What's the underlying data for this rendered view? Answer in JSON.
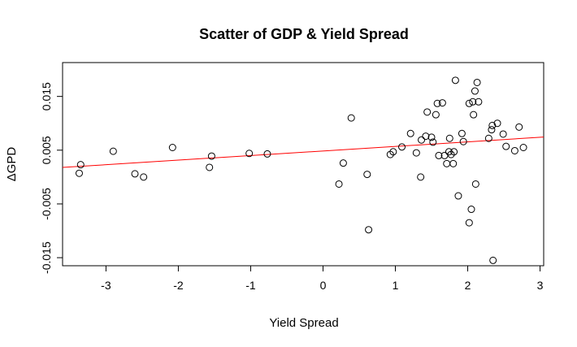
{
  "chart_data": {
    "type": "scatter",
    "title": "Scatter of GDP & Yield Spread",
    "xlabel": "Yield Spread",
    "ylabel": "ΔGPD",
    "xlim": [
      -3.6,
      3.05
    ],
    "ylim": [
      -0.0165,
      0.0213
    ],
    "xticks": [
      -3,
      -2,
      -1,
      0,
      1,
      2,
      3
    ],
    "yticks": [
      -0.015,
      -0.005,
      0.005,
      0.015
    ],
    "xtick_labels": [
      "-3",
      "-2",
      "-1",
      "0",
      "1",
      "2",
      "3"
    ],
    "ytick_labels": [
      "-0.015",
      "-0.005",
      "0.005",
      "0.015"
    ],
    "colors": {
      "points": "#000000",
      "regression": "#ff0000",
      "frame": "#000000"
    },
    "regression_line": {
      "intercept": 0.00485,
      "slope": 0.00085
    },
    "points": [
      {
        "x": -3.35,
        "y": 0.0023
      },
      {
        "x": -3.37,
        "y": 0.0007
      },
      {
        "x": -2.9,
        "y": 0.0048
      },
      {
        "x": -2.6,
        "y": 0.0006
      },
      {
        "x": -2.48,
        "y": 0.0
      },
      {
        "x": -2.08,
        "y": 0.0055
      },
      {
        "x": -1.57,
        "y": 0.0018
      },
      {
        "x": -1.54,
        "y": 0.0039
      },
      {
        "x": -1.02,
        "y": 0.0044
      },
      {
        "x": -0.77,
        "y": 0.0043
      },
      {
        "x": 0.22,
        "y": -0.0013
      },
      {
        "x": 0.28,
        "y": 0.0026
      },
      {
        "x": 0.39,
        "y": 0.011
      },
      {
        "x": 0.61,
        "y": 0.0005
      },
      {
        "x": 0.63,
        "y": -0.0098
      },
      {
        "x": 0.93,
        "y": 0.0042
      },
      {
        "x": 0.97,
        "y": 0.0047
      },
      {
        "x": 1.09,
        "y": 0.0056
      },
      {
        "x": 1.21,
        "y": 0.0081
      },
      {
        "x": 1.29,
        "y": 0.0045
      },
      {
        "x": 1.35,
        "y": 0.0
      },
      {
        "x": 1.36,
        "y": 0.0069
      },
      {
        "x": 1.42,
        "y": 0.0076
      },
      {
        "x": 1.44,
        "y": 0.0121
      },
      {
        "x": 1.5,
        "y": 0.0074
      },
      {
        "x": 1.52,
        "y": 0.0065
      },
      {
        "x": 1.56,
        "y": 0.0116
      },
      {
        "x": 1.58,
        "y": 0.0137
      },
      {
        "x": 1.6,
        "y": 0.004
      },
      {
        "x": 1.65,
        "y": 0.0138
      },
      {
        "x": 1.68,
        "y": 0.004
      },
      {
        "x": 1.71,
        "y": 0.0025
      },
      {
        "x": 1.74,
        "y": 0.0047
      },
      {
        "x": 1.75,
        "y": 0.0072
      },
      {
        "x": 1.77,
        "y": 0.0042
      },
      {
        "x": 1.8,
        "y": 0.0025
      },
      {
        "x": 1.81,
        "y": 0.0047
      },
      {
        "x": 1.83,
        "y": 0.018
      },
      {
        "x": 1.87,
        "y": -0.0035
      },
      {
        "x": 1.92,
        "y": 0.0081
      },
      {
        "x": 1.94,
        "y": 0.0066
      },
      {
        "x": 2.02,
        "y": 0.0137
      },
      {
        "x": 2.02,
        "y": -0.0085
      },
      {
        "x": 2.05,
        "y": -0.006
      },
      {
        "x": 2.07,
        "y": 0.014
      },
      {
        "x": 2.08,
        "y": 0.0116
      },
      {
        "x": 2.1,
        "y": 0.016
      },
      {
        "x": 2.11,
        "y": -0.0013
      },
      {
        "x": 2.13,
        "y": 0.0176
      },
      {
        "x": 2.15,
        "y": 0.014
      },
      {
        "x": 2.29,
        "y": 0.0072
      },
      {
        "x": 2.33,
        "y": 0.0088
      },
      {
        "x": 2.34,
        "y": 0.0096
      },
      {
        "x": 2.35,
        "y": -0.0155
      },
      {
        "x": 2.41,
        "y": 0.01
      },
      {
        "x": 2.49,
        "y": 0.008
      },
      {
        "x": 2.53,
        "y": 0.0057
      },
      {
        "x": 2.65,
        "y": 0.0049
      },
      {
        "x": 2.71,
        "y": 0.0093
      },
      {
        "x": 2.77,
        "y": 0.0055
      }
    ],
    "grid": false,
    "legend": "none"
  }
}
